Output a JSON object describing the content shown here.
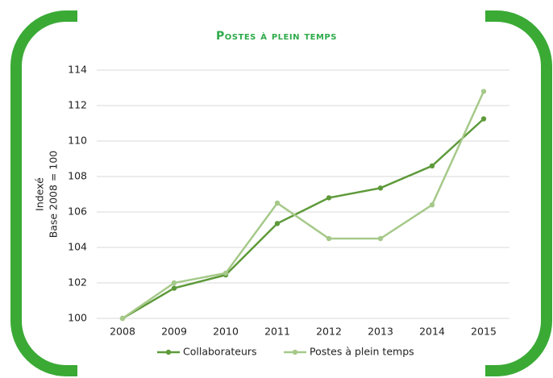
{
  "chart_data": {
    "type": "line",
    "title": "Postes à plein temps",
    "y_label": [
      "Indexé",
      "Base 2008 = 100"
    ],
    "categories": [
      "2008",
      "2009",
      "2010",
      "2011",
      "2012",
      "2013",
      "2014",
      "2015"
    ],
    "series": [
      {
        "name": "Collaborateurs",
        "color": "#5e9a3a",
        "values": [
          100,
          101.7,
          102.45,
          105.35,
          106.8,
          107.35,
          108.6,
          111.25
        ]
      },
      {
        "name": "Postes à plein temps",
        "color": "#a6c98a",
        "values": [
          100,
          102.0,
          102.55,
          106.5,
          104.5,
          104.5,
          106.4,
          112.8
        ]
      }
    ],
    "ylim": [
      100,
      114
    ],
    "yticks": [
      100,
      102,
      104,
      106,
      108,
      110,
      112,
      114
    ],
    "grid": true,
    "legend": "bottom"
  }
}
